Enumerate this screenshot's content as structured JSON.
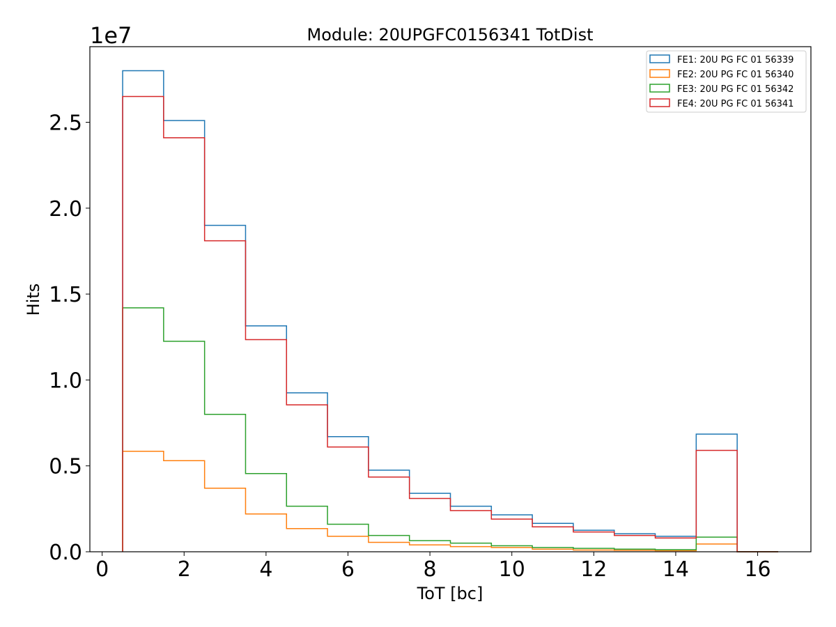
{
  "chart_data": {
    "type": "step-histogram",
    "title": "Module: 20UPGFC0156341 TotDist",
    "xlabel": "ToT [bc]",
    "ylabel": "Hits",
    "y_offset_label": "1e7",
    "xlim": [
      -0.3,
      17.3
    ],
    "ylim": [
      0,
      2.94
    ],
    "xticks": [
      0,
      2,
      4,
      6,
      8,
      10,
      12,
      14,
      16
    ],
    "yticks": [
      0.0,
      0.5,
      1.0,
      1.5,
      2.0,
      2.5
    ],
    "ytick_labels": [
      "0.0",
      "0.5",
      "1.0",
      "1.5",
      "2.0",
      "2.5"
    ],
    "bin_edges": [
      0.5,
      1.5,
      2.5,
      3.5,
      4.5,
      5.5,
      6.5,
      7.5,
      8.5,
      9.5,
      10.5,
      11.5,
      12.5,
      13.5,
      14.5,
      15.5,
      16.5
    ],
    "legend_position": "top-right",
    "series": [
      {
        "name": "FE1: 20U PG FC 01 56339",
        "color": "#1f77b4",
        "values": [
          2.8,
          2.51,
          1.9,
          1.315,
          0.925,
          0.67,
          0.475,
          0.34,
          0.265,
          0.215,
          0.165,
          0.125,
          0.105,
          0.09,
          0.685,
          0.0
        ]
      },
      {
        "name": "FE2: 20U PG FC 01 56340",
        "color": "#ff7f0e",
        "values": [
          0.585,
          0.53,
          0.37,
          0.22,
          0.135,
          0.09,
          0.055,
          0.04,
          0.03,
          0.025,
          0.015,
          0.01,
          0.008,
          0.006,
          0.045,
          0.0
        ]
      },
      {
        "name": "FE3: 20U PG FC 01 56342",
        "color": "#2ca02c",
        "values": [
          1.42,
          1.225,
          0.8,
          0.455,
          0.265,
          0.16,
          0.095,
          0.065,
          0.05,
          0.035,
          0.025,
          0.02,
          0.015,
          0.012,
          0.085,
          0.0
        ]
      },
      {
        "name": "FE4: 20U PG FC 01 56341",
        "color": "#d62728",
        "values": [
          2.65,
          2.41,
          1.81,
          1.235,
          0.855,
          0.61,
          0.435,
          0.31,
          0.24,
          0.19,
          0.145,
          0.115,
          0.095,
          0.08,
          0.59,
          0.0
        ]
      }
    ]
  }
}
